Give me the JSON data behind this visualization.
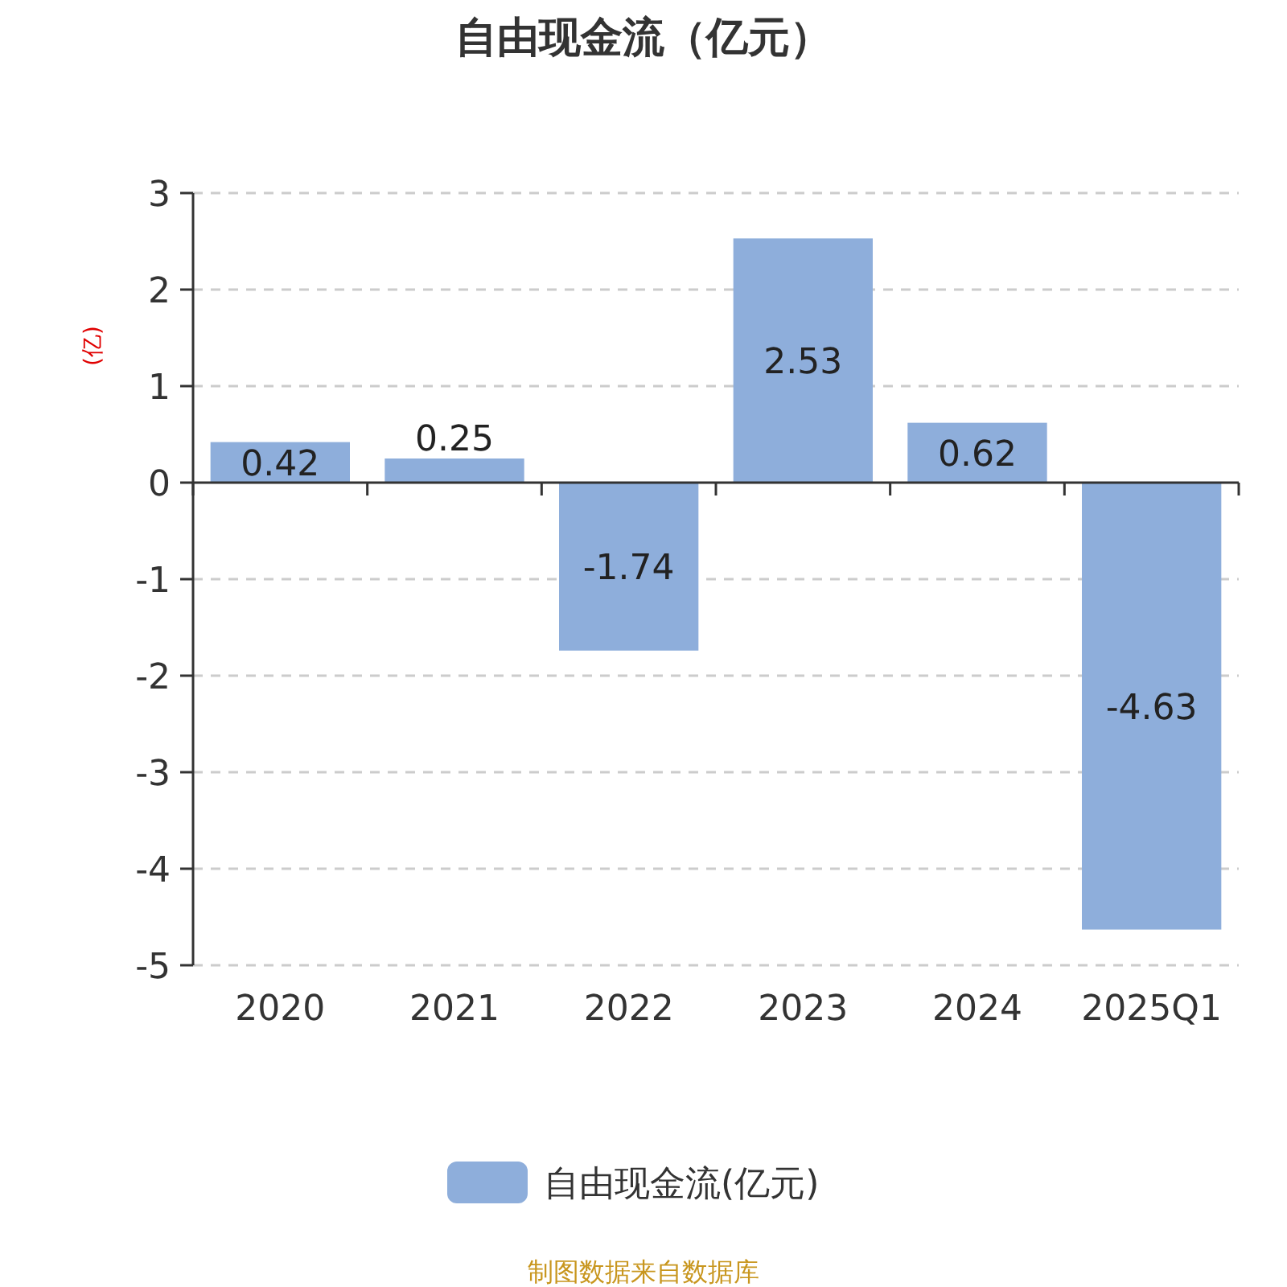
{
  "chart_data": {
    "type": "bar",
    "title": "自由现金流（亿元）",
    "ylabel": "(亿)",
    "categories": [
      "2020",
      "2021",
      "2022",
      "2023",
      "2024",
      "2025Q1"
    ],
    "series": [
      {
        "name": "自由现金流(亿元)",
        "color": "#8eaedb",
        "values": [
          0.42,
          0.25,
          -1.74,
          2.53,
          0.62,
          -4.63
        ]
      }
    ],
    "ylim": [
      -5,
      3
    ],
    "yticks": [
      -5,
      -4,
      -3,
      -2,
      -1,
      0,
      1,
      2,
      3
    ],
    "grid": "y",
    "legend": "bottom",
    "data_labels": true,
    "annotations": [
      "制图数据来自数据库"
    ]
  }
}
